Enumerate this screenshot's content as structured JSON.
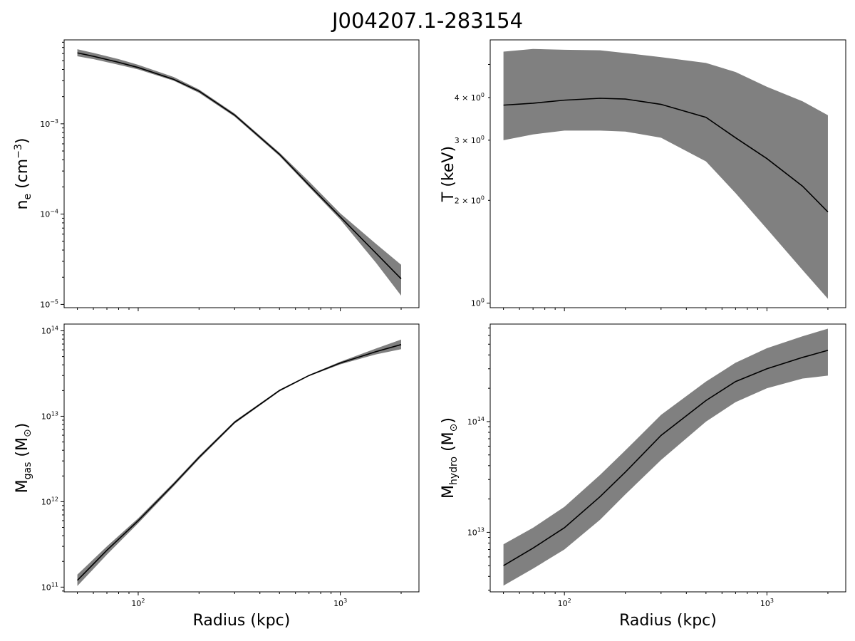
{
  "figure": {
    "title": "J004207.1-283154"
  },
  "colors": {
    "band": "#808080",
    "line": "#000000",
    "axes": "#000000"
  },
  "chart_data": [
    {
      "id": "ne",
      "type": "line",
      "title": "",
      "xlabel": "",
      "ylabel_main": "n",
      "ylabel_sub": "e",
      "ylabel_unit": " (cm",
      "ylabel_sup": "−3",
      "ylabel_close": ")",
      "xscale": "log",
      "yscale": "log",
      "xlim": [
        43,
        2450
      ],
      "ylim": [
        9.2e-06,
        0.0085
      ],
      "xticks": [
        100,
        1000
      ],
      "xtick_labels": [
        {
          "b": "10",
          "e": "2"
        },
        {
          "b": "10",
          "e": "3"
        }
      ],
      "yticks": [
        1e-05,
        0.0001,
        0.001
      ],
      "ytick_labels": [
        {
          "b": "10",
          "e": "−5"
        },
        {
          "b": "10",
          "e": "−4"
        },
        {
          "b": "10",
          "e": "−3"
        }
      ],
      "show_xticklabels": false,
      "series": [
        {
          "name": "median",
          "x": [
            50,
            60,
            80,
            100,
            150,
            200,
            300,
            500,
            700,
            1000,
            1500,
            2000
          ],
          "y": [
            0.0061,
            0.0056,
            0.0048,
            0.0042,
            0.0031,
            0.0023,
            0.00125,
            0.00046,
            0.00021,
            9.3e-05,
            3.7e-05,
            1.92e-05
          ],
          "y_low": [
            0.0056,
            0.0052,
            0.0045,
            0.004,
            0.003,
            0.0022,
            0.0012,
            0.00044,
            0.0002,
            8.7e-05,
            2.9e-05,
            1.25e-05
          ],
          "y_high": [
            0.0067,
            0.0061,
            0.0052,
            0.0045,
            0.0033,
            0.0024,
            0.0013,
            0.00048,
            0.00023,
            0.000102,
            4.7e-05,
            2.75e-05
          ]
        }
      ]
    },
    {
      "id": "T",
      "type": "line",
      "title": "",
      "xlabel": "",
      "ylabel_main": "T (keV)",
      "xscale": "log",
      "yscale": "log",
      "xlim": [
        43,
        2450
      ],
      "ylim": [
        0.97,
        5.9
      ],
      "xticks": [
        100,
        1000
      ],
      "xtick_labels": [],
      "yticks": [
        1,
        2,
        3,
        4
      ],
      "ytick_labels": [
        {
          "b": "10",
          "e": "0"
        },
        {
          "b": "2 × 10",
          "e": "0"
        },
        {
          "b": "3 × 10",
          "e": "0"
        },
        {
          "b": "4 × 10",
          "e": "0"
        }
      ],
      "show_xticklabels": false,
      "series": [
        {
          "name": "median",
          "x": [
            50,
            70,
            100,
            150,
            200,
            300,
            500,
            700,
            1000,
            1500,
            2000
          ],
          "y": [
            3.8,
            3.85,
            3.93,
            3.98,
            3.96,
            3.82,
            3.5,
            3.05,
            2.65,
            2.2,
            1.85
          ],
          "y_low": [
            3.0,
            3.12,
            3.2,
            3.2,
            3.18,
            3.05,
            2.6,
            2.1,
            1.65,
            1.25,
            1.03
          ],
          "y_high": [
            5.45,
            5.55,
            5.52,
            5.5,
            5.4,
            5.25,
            5.05,
            4.75,
            4.3,
            3.9,
            3.55
          ]
        }
      ]
    },
    {
      "id": "mgas",
      "type": "line",
      "title": "",
      "xlabel": "Radius (kpc)",
      "ylabel_main": "M",
      "ylabel_sub": "gas",
      "ylabel_unit": " (M",
      "ylabel_sub2": "⊙",
      "ylabel_close": ")",
      "xscale": "log",
      "yscale": "log",
      "xlim": [
        43,
        2450
      ],
      "ylim": [
        88000000000.0,
        120000000000000.0
      ],
      "xticks": [
        100,
        1000
      ],
      "xtick_labels": [
        {
          "b": "10",
          "e": "2"
        },
        {
          "b": "10",
          "e": "3"
        }
      ],
      "yticks": [
        100000000000.0,
        1000000000000.0,
        10000000000000.0,
        100000000000000.0
      ],
      "ytick_labels": [
        {
          "b": "10",
          "e": "11"
        },
        {
          "b": "10",
          "e": "12"
        },
        {
          "b": "10",
          "e": "13"
        },
        {
          "b": "10",
          "e": "14"
        }
      ],
      "show_xticklabels": true,
      "series": [
        {
          "name": "median",
          "x": [
            50,
            70,
            100,
            150,
            200,
            300,
            500,
            700,
            1000,
            1500,
            2000
          ],
          "y": [
            120000000000.0,
            270000000000.0,
            600000000000.0,
            1600000000000.0,
            3300000000000.0,
            8500000000000.0,
            20000000000000.0,
            30000000000000.0,
            42000000000000.0,
            57000000000000.0,
            69000000000000.0
          ],
          "y_low": [
            103000000000.0,
            240000000000.0,
            560000000000.0,
            1520000000000.0,
            3150000000000.0,
            8200000000000.0,
            19500000000000.0,
            29500000000000.0,
            40500000000000.0,
            53000000000000.0,
            61000000000000.0
          ],
          "y_high": [
            140000000000.0,
            300000000000.0,
            640000000000.0,
            1680000000000.0,
            3450000000000.0,
            8800000000000.0,
            20500000000000.0,
            30500000000000.0,
            43500000000000.0,
            62000000000000.0,
            79000000000000.0
          ]
        }
      ]
    },
    {
      "id": "mhydro",
      "type": "line",
      "title": "",
      "xlabel": "Radius (kpc)",
      "ylabel_main": "M",
      "ylabel_sub": "hydro",
      "ylabel_unit": " (M",
      "ylabel_sub2": "⊙",
      "ylabel_close": ")",
      "xscale": "log",
      "yscale": "log",
      "xlim": [
        43,
        2450
      ],
      "ylim": [
        2900000000000.0,
        760000000000000.0
      ],
      "xticks": [
        100,
        1000
      ],
      "xtick_labels": [
        {
          "b": "10",
          "e": "2"
        },
        {
          "b": "10",
          "e": "3"
        }
      ],
      "yticks": [
        10000000000000.0,
        100000000000000.0
      ],
      "ytick_labels": [
        {
          "b": "10",
          "e": "13"
        },
        {
          "b": "10",
          "e": "14"
        }
      ],
      "show_xticklabels": true,
      "series": [
        {
          "name": "median",
          "x": [
            50,
            70,
            100,
            150,
            200,
            300,
            500,
            700,
            1000,
            1500,
            2000
          ],
          "y": [
            5000000000000.0,
            7200000000000.0,
            11000000000000.0,
            21000000000000.0,
            35000000000000.0,
            75000000000000.0,
            155000000000000.0,
            230000000000000.0,
            300000000000000.0,
            380000000000000.0,
            440000000000000.0
          ],
          "y_low": [
            3300000000000.0,
            4700000000000.0,
            7000000000000.0,
            13000000000000.0,
            22000000000000.0,
            45000000000000.0,
            100000000000000.0,
            150000000000000.0,
            200000000000000.0,
            245000000000000.0,
            260000000000000.0
          ],
          "y_high": [
            7800000000000.0,
            11000000000000.0,
            17000000000000.0,
            33000000000000.0,
            55000000000000.0,
            115000000000000.0,
            230000000000000.0,
            340000000000000.0,
            460000000000000.0,
            590000000000000.0,
            690000000000000.0
          ]
        }
      ]
    }
  ]
}
